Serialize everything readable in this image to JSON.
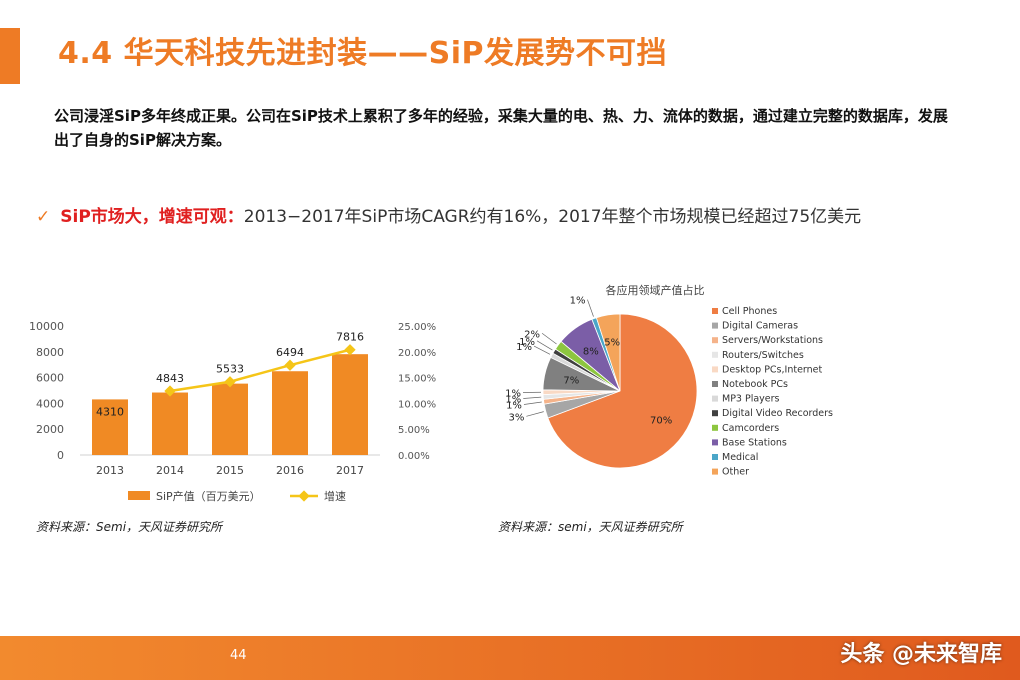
{
  "header": {
    "title": "4.4 华天科技先进封装——SiP发展势不可挡"
  },
  "intro": {
    "text": "公司浸淫SiP多年终成正果。公司在SiP技术上累积了多年的经验，采集大量的电、热、力、流体的数据，通过建立完整的数据库，发展出了自身的SiP解决方案。"
  },
  "bullet": {
    "icon": "check-icon",
    "head": "SiP市场大，增速可观：",
    "body": "2013−2017年SiP市场CAGR约有16%，2017年整个市场规模已经超过75亿美元"
  },
  "colors": {
    "accent": "#ee7b25",
    "highlight": "#e02020",
    "line": "#f5c518"
  },
  "chart_data": [
    {
      "type": "bar",
      "categories": [
        "2013",
        "2014",
        "2015",
        "2016",
        "2017"
      ],
      "series": [
        {
          "name": "SiP产值（百万美元）",
          "type": "bar",
          "axis": "left",
          "values": [
            4310,
            4843,
            5533,
            6494,
            7816
          ],
          "color": "#f08a24"
        },
        {
          "name": "增速",
          "type": "line",
          "axis": "right",
          "values": [
            null,
            12.4,
            14.2,
            17.4,
            20.4
          ],
          "color": "#f5c518"
        }
      ],
      "y_left": {
        "ylim": [
          0,
          10000
        ],
        "ticks": [
          "0",
          "2000",
          "4000",
          "6000",
          "8000",
          "10000"
        ]
      },
      "y_right": {
        "ylim": [
          0,
          25
        ],
        "ticks": [
          "0.00%",
          "5.00%",
          "10.00%",
          "15.00%",
          "20.00%",
          "25.00%"
        ]
      },
      "legend": "bottom",
      "grid": false,
      "source": "资料来源：Semi，天风证券研究所"
    },
    {
      "type": "pie",
      "title": "各应用领域产值占比",
      "labels": [
        "Cell Phones",
        "Digital Cameras",
        "Servers/Workstations",
        "Routers/Switches",
        "Desktop PCs,Internet",
        "Notebook PCs",
        "MP3 Players",
        "Digital Video Recorders",
        "Camcorders",
        "Base Stations",
        "Medical",
        "Other"
      ],
      "values": [
        70,
        3,
        1,
        1,
        1,
        7,
        1,
        1,
        2,
        8,
        1,
        5
      ],
      "value_labels": [
        "70%",
        "3%",
        "1%",
        "1%",
        "1%",
        "7%",
        "1%",
        "1%",
        "2%",
        "8%",
        "1%",
        "5%"
      ],
      "colors": [
        "#ef7d43",
        "#a6a6a6",
        "#f5b38a",
        "#e6e6e6",
        "#f9d9c4",
        "#808080",
        "#d9d9d9",
        "#404040",
        "#8dc63f",
        "#7b5ea7",
        "#4ba6c8",
        "#f4a45a"
      ],
      "legend": "right",
      "source": "资料来源：semi，天风证券研究所"
    }
  ],
  "footer": {
    "page": "44",
    "watermark": "头条 @未来智库"
  }
}
